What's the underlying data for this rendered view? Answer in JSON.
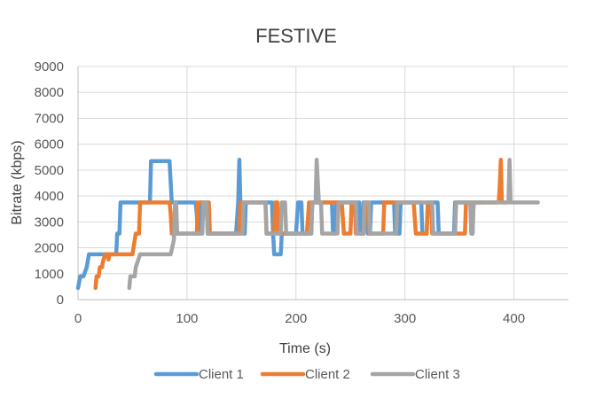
{
  "chart_data": {
    "type": "line",
    "title": "FESTIVE",
    "xlabel": "Time (s)",
    "ylabel": "Bitrate (kbps)",
    "xlim": [
      0,
      450
    ],
    "ylim": [
      0,
      9000
    ],
    "x_ticks": [
      "0",
      "100",
      "200",
      "300",
      "400"
    ],
    "y_ticks": [
      "0",
      "1000",
      "2000",
      "3000",
      "4000",
      "5000",
      "6000",
      "7000",
      "8000",
      "9000"
    ],
    "x_tick_values": [
      0,
      100,
      200,
      300,
      400
    ],
    "y_tick_values": [
      0,
      1000,
      2000,
      3000,
      4000,
      5000,
      6000,
      7000,
      8000,
      9000
    ],
    "grid": "vertical and horizontal",
    "legend_position": "bottom",
    "series": [
      {
        "name": "Client 1",
        "color": "#5b9bd5",
        "points": [
          [
            0,
            450
          ],
          [
            2,
            900
          ],
          [
            5,
            900
          ],
          [
            8,
            1250
          ],
          [
            10,
            1750
          ],
          [
            35,
            1750
          ],
          [
            36,
            2550
          ],
          [
            38,
            2550
          ],
          [
            39,
            3750
          ],
          [
            66,
            3750
          ],
          [
            67,
            5350
          ],
          [
            84,
            5350
          ],
          [
            86,
            3750
          ],
          [
            108,
            3750
          ],
          [
            109,
            3300
          ],
          [
            110,
            2550
          ],
          [
            112,
            2550
          ],
          [
            113,
            3750
          ],
          [
            118,
            3750
          ],
          [
            119,
            2550
          ],
          [
            145,
            2550
          ],
          [
            147,
            3750
          ],
          [
            148,
            5400
          ],
          [
            149,
            3750
          ],
          [
            150,
            2550
          ],
          [
            153,
            2550
          ],
          [
            154,
            3750
          ],
          [
            178,
            3750
          ],
          [
            179,
            2550
          ],
          [
            180,
            1750
          ],
          [
            186,
            1750
          ],
          [
            187,
            2550
          ],
          [
            200,
            2550
          ],
          [
            202,
            3750
          ],
          [
            205,
            3750
          ],
          [
            206,
            2550
          ],
          [
            214,
            2550
          ],
          [
            215,
            3750
          ],
          [
            233,
            3750
          ],
          [
            234,
            2550
          ],
          [
            236,
            2550
          ],
          [
            237,
            3750
          ],
          [
            258,
            3750
          ],
          [
            259,
            2550
          ],
          [
            261,
            2550
          ],
          [
            262,
            3750
          ],
          [
            265,
            3750
          ],
          [
            266,
            2550
          ],
          [
            268,
            2550
          ],
          [
            269,
            3750
          ],
          [
            290,
            3750
          ],
          [
            291,
            2550
          ],
          [
            295,
            2550
          ],
          [
            296,
            3750
          ],
          [
            315,
            3750
          ],
          [
            316,
            2550
          ],
          [
            320,
            2550
          ],
          [
            321,
            3750
          ],
          [
            330,
            3750
          ],
          [
            331,
            2550
          ],
          [
            345,
            2550
          ],
          [
            346,
            3750
          ],
          [
            360,
            3750
          ],
          [
            361,
            2550
          ],
          [
            362,
            2550
          ],
          [
            363,
            3750
          ],
          [
            372,
            3750
          ]
        ]
      },
      {
        "name": "Client 2",
        "color": "#ed7d31",
        "points": [
          [
            16,
            450
          ],
          [
            17,
            900
          ],
          [
            19,
            900
          ],
          [
            20,
            1250
          ],
          [
            22,
            1250
          ],
          [
            23,
            1500
          ],
          [
            25,
            1750
          ],
          [
            27,
            1750
          ],
          [
            28,
            1550
          ],
          [
            29,
            1750
          ],
          [
            50,
            1750
          ],
          [
            52,
            2300
          ],
          [
            53,
            2550
          ],
          [
            56,
            2550
          ],
          [
            57,
            3750
          ],
          [
            84,
            3750
          ],
          [
            85,
            3300
          ],
          [
            86,
            2550
          ],
          [
            109,
            2550
          ],
          [
            110,
            3750
          ],
          [
            120,
            3750
          ],
          [
            121,
            2550
          ],
          [
            148,
            2550
          ],
          [
            149,
            3750
          ],
          [
            172,
            3750
          ],
          [
            173,
            2550
          ],
          [
            180,
            2550
          ],
          [
            181,
            3750
          ],
          [
            183,
            3750
          ],
          [
            184,
            2550
          ],
          [
            210,
            2550
          ],
          [
            212,
            3750
          ],
          [
            242,
            3750
          ],
          [
            244,
            2550
          ],
          [
            250,
            2550
          ],
          [
            251,
            3750
          ],
          [
            254,
            3750
          ],
          [
            255,
            2550
          ],
          [
            262,
            2550
          ],
          [
            263,
            3750
          ],
          [
            266,
            3750
          ],
          [
            267,
            2550
          ],
          [
            280,
            2550
          ],
          [
            281,
            3750
          ],
          [
            308,
            3750
          ],
          [
            310,
            2550
          ],
          [
            320,
            2550
          ],
          [
            321,
            3750
          ],
          [
            324,
            3750
          ],
          [
            325,
            2550
          ],
          [
            355,
            2550
          ],
          [
            356,
            3750
          ],
          [
            386,
            3750
          ],
          [
            387,
            4400
          ],
          [
            388,
            5400
          ],
          [
            389,
            3750
          ],
          [
            392,
            3750
          ]
        ]
      },
      {
        "name": "Client 3",
        "color": "#a5a5a5",
        "points": [
          [
            47,
            450
          ],
          [
            48,
            900
          ],
          [
            52,
            900
          ],
          [
            53,
            1250
          ],
          [
            55,
            1500
          ],
          [
            57,
            1750
          ],
          [
            85,
            1750
          ],
          [
            88,
            2300
          ],
          [
            89,
            3750
          ],
          [
            90,
            3750
          ],
          [
            91,
            2550
          ],
          [
            114,
            2550
          ],
          [
            115,
            3750
          ],
          [
            118,
            3750
          ],
          [
            119,
            2550
          ],
          [
            151,
            2550
          ],
          [
            152,
            3750
          ],
          [
            172,
            3750
          ],
          [
            173,
            2550
          ],
          [
            186,
            2550
          ],
          [
            187,
            3750
          ],
          [
            190,
            3750
          ],
          [
            191,
            2550
          ],
          [
            214,
            2550
          ],
          [
            215,
            3750
          ],
          [
            218,
            3750
          ],
          [
            219,
            5400
          ],
          [
            221,
            3750
          ],
          [
            223,
            3750
          ],
          [
            224,
            2550
          ],
          [
            238,
            2550
          ],
          [
            239,
            3750
          ],
          [
            255,
            3750
          ],
          [
            256,
            2550
          ],
          [
            262,
            2550
          ],
          [
            263,
            3750
          ],
          [
            267,
            3750
          ],
          [
            268,
            2550
          ],
          [
            292,
            2550
          ],
          [
            293,
            3750
          ],
          [
            325,
            3750
          ],
          [
            326,
            2550
          ],
          [
            346,
            2550
          ],
          [
            347,
            3750
          ],
          [
            360,
            3750
          ],
          [
            361,
            2550
          ],
          [
            362,
            2550
          ],
          [
            363,
            3750
          ],
          [
            395,
            3750
          ],
          [
            396,
            5400
          ],
          [
            397,
            3750
          ],
          [
            422,
            3750
          ]
        ]
      }
    ]
  }
}
